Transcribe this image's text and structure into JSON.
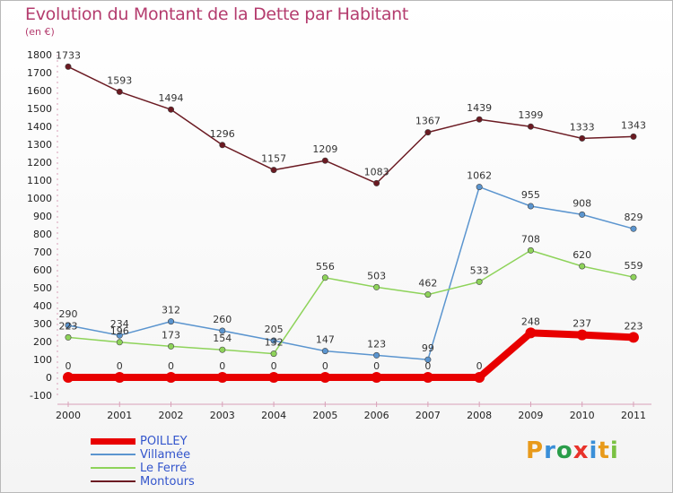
{
  "header": {
    "title": "Evolution du Montant de la Dette par Habitant",
    "subtitle": "(en €)"
  },
  "logo": {
    "text": "Proxiti",
    "letter_colors": [
      "#e89a1a",
      "#3a8fd8",
      "#2a9d4a",
      "#e8322a",
      "#3a8fd8",
      "#e89a1a",
      "#7ac142"
    ]
  },
  "chart_data": {
    "type": "line",
    "x": [
      "2000",
      "2001",
      "2002",
      "2003",
      "2004",
      "2005",
      "2006",
      "2007",
      "2008",
      "2009",
      "2010",
      "2011"
    ],
    "ylim": [
      -100,
      1800
    ],
    "yticks": [
      -100,
      0,
      100,
      200,
      300,
      400,
      500,
      600,
      700,
      800,
      900,
      1000,
      1100,
      1200,
      1300,
      1400,
      1500,
      1600,
      1700,
      1800
    ],
    "grid": false,
    "legend_position": "bottom-left",
    "series": [
      {
        "name": "Montours",
        "color": "#6b1a22",
        "values": [
          1733,
          1593,
          1494,
          1296,
          1157,
          1209,
          1083,
          1367,
          1439,
          1399,
          1333,
          1343
        ]
      },
      {
        "name": "Villamée",
        "color": "#5b95cf",
        "values": [
          290,
          234,
          312,
          260,
          205,
          147,
          123,
          99,
          1062,
          955,
          908,
          829
        ]
      },
      {
        "name": "Le Ferré",
        "color": "#8ed35a",
        "values": [
          223,
          196,
          173,
          154,
          132,
          556,
          503,
          462,
          533,
          708,
          620,
          559
        ]
      },
      {
        "name": "POILLEY",
        "color": "#e80000",
        "values": [
          0,
          0,
          0,
          0,
          0,
          0,
          0,
          0,
          0,
          248,
          237,
          223
        ]
      }
    ],
    "legend_order": [
      "POILLEY",
      "Villamée",
      "Le Ferré",
      "Montours"
    ]
  }
}
